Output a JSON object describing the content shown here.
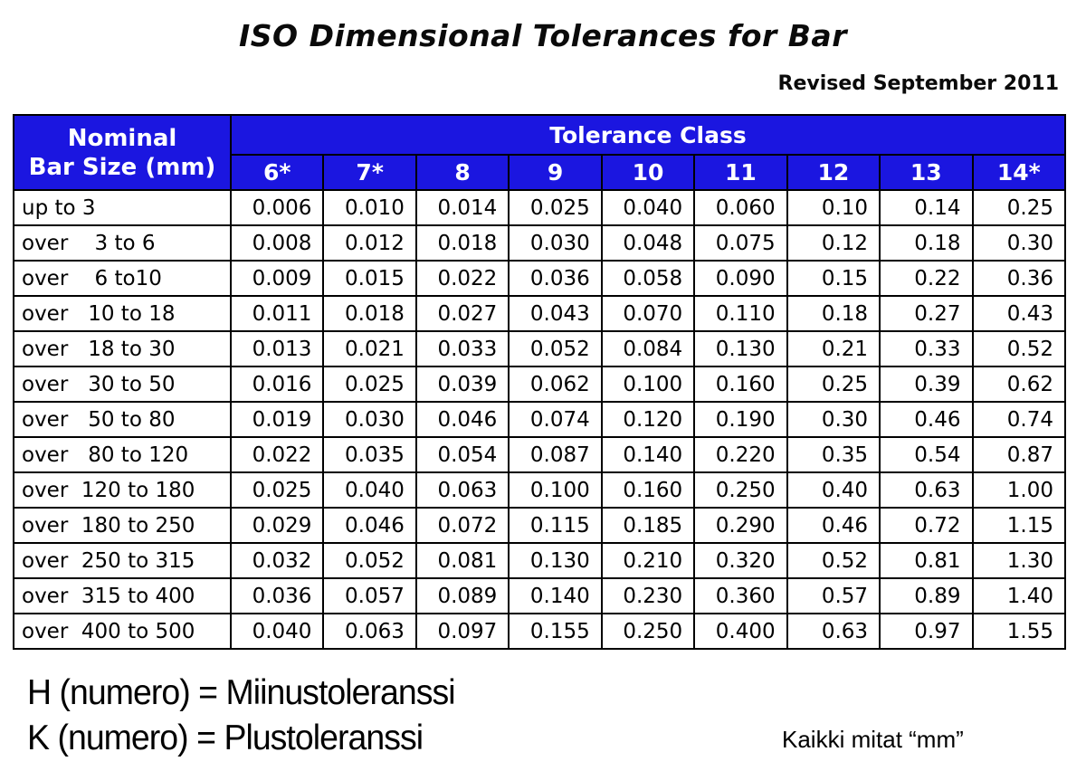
{
  "title": "ISO Dimensional Tolerances for Bar",
  "revision": "Revised September 2011",
  "colors": {
    "header_blue": "#1b16e0",
    "header_text": "#ffffff",
    "border": "#000000",
    "body_text": "#000000"
  },
  "chart_data": {
    "type": "table",
    "title": "ISO Dimensional Tolerances for Bar",
    "corner": [
      "Nominal",
      "Bar Size (mm)"
    ],
    "group_header": "Tolerance Class",
    "columns": [
      "6*",
      "7*",
      "8",
      "9",
      "10",
      "11",
      "12",
      "13",
      "14*"
    ],
    "rows": [
      {
        "label": "up to 3",
        "values": [
          "0.006",
          "0.010",
          "0.014",
          "0.025",
          "0.040",
          "0.060",
          "0.10",
          "0.14",
          "0.25"
        ]
      },
      {
        "label": "over    3 to 6",
        "values": [
          "0.008",
          "0.012",
          "0.018",
          "0.030",
          "0.048",
          "0.075",
          "0.12",
          "0.18",
          "0.30"
        ]
      },
      {
        "label": "over    6 to10",
        "values": [
          "0.009",
          "0.015",
          "0.022",
          "0.036",
          "0.058",
          "0.090",
          "0.15",
          "0.22",
          "0.36"
        ]
      },
      {
        "label": "over   10 to 18",
        "values": [
          "0.011",
          "0.018",
          "0.027",
          "0.043",
          "0.070",
          "0.110",
          "0.18",
          "0.27",
          "0.43"
        ]
      },
      {
        "label": "over   18 to 30",
        "values": [
          "0.013",
          "0.021",
          "0.033",
          "0.052",
          "0.084",
          "0.130",
          "0.21",
          "0.33",
          "0.52"
        ]
      },
      {
        "label": "over   30 to 50",
        "values": [
          "0.016",
          "0.025",
          "0.039",
          "0.062",
          "0.100",
          "0.160",
          "0.25",
          "0.39",
          "0.62"
        ]
      },
      {
        "label": "over   50 to 80",
        "values": [
          "0.019",
          "0.030",
          "0.046",
          "0.074",
          "0.120",
          "0.190",
          "0.30",
          "0.46",
          "0.74"
        ]
      },
      {
        "label": "over   80 to 120",
        "values": [
          "0.022",
          "0.035",
          "0.054",
          "0.087",
          "0.140",
          "0.220",
          "0.35",
          "0.54",
          "0.87"
        ]
      },
      {
        "label": "over  120 to 180",
        "values": [
          "0.025",
          "0.040",
          "0.063",
          "0.100",
          "0.160",
          "0.250",
          "0.40",
          "0.63",
          "1.00"
        ]
      },
      {
        "label": "over  180 to 250",
        "values": [
          "0.029",
          "0.046",
          "0.072",
          "0.115",
          "0.185",
          "0.290",
          "0.46",
          "0.72",
          "1.15"
        ]
      },
      {
        "label": "over  250 to 315",
        "values": [
          "0.032",
          "0.052",
          "0.081",
          "0.130",
          "0.210",
          "0.320",
          "0.52",
          "0.81",
          "1.30"
        ]
      },
      {
        "label": "over  315 to 400",
        "values": [
          "0.036",
          "0.057",
          "0.089",
          "0.140",
          "0.230",
          "0.360",
          "0.57",
          "0.89",
          "1.40"
        ]
      },
      {
        "label": "over  400 to 500",
        "values": [
          "0.040",
          "0.063",
          "0.097",
          "0.155",
          "0.250",
          "0.400",
          "0.63",
          "0.97",
          "1.55"
        ]
      }
    ]
  },
  "footer": {
    "line1": "H (numero) = Miinustoleranssi",
    "line2": "K (numero) = Plustoleranssi",
    "units_note": "Kaikki mitat “mm”"
  }
}
